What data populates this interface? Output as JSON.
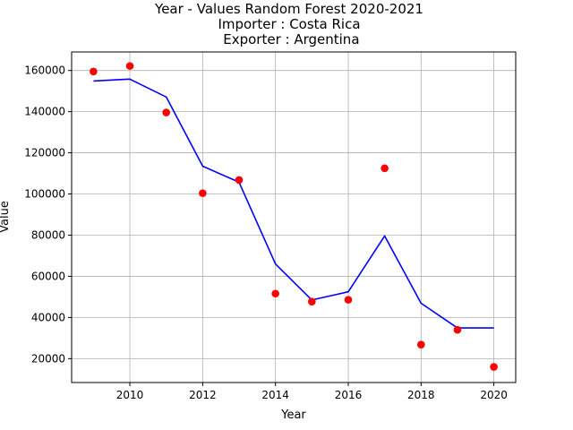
{
  "chart_data": {
    "type": "line",
    "title_lines": [
      "Year - Values Random Forest 2020-2021",
      "Importer : Costa Rica",
      " Exporter : Argentina"
    ],
    "xlabel": "Year",
    "ylabel": "Value",
    "xlim": [
      2008.4,
      2020.6
    ],
    "ylim": [
      8400,
      169000
    ],
    "x_ticks": [
      2010,
      2012,
      2014,
      2016,
      2018,
      2020
    ],
    "x_tick_labels": [
      "2010",
      "2012",
      "2014",
      "2016",
      "2018",
      "2020"
    ],
    "y_ticks": [
      20000,
      40000,
      60000,
      80000,
      100000,
      120000,
      140000,
      160000
    ],
    "y_tick_labels": [
      "20000",
      "40000",
      "60000",
      "80000",
      "100000",
      "120000",
      "140000",
      "160000"
    ],
    "grid": true,
    "series": [
      {
        "kind": "line",
        "color": "#0000ff",
        "x": [
          2009,
          2010,
          2011,
          2012,
          2013,
          2014,
          2015,
          2016,
          2017,
          2018,
          2019,
          2020
        ],
        "y": [
          154900,
          155800,
          147100,
          113500,
          105700,
          66000,
          48500,
          52500,
          79600,
          46900,
          34900,
          34900
        ]
      },
      {
        "kind": "scatter",
        "color": "#ff0000",
        "x": [
          2009,
          2010,
          2011,
          2012,
          2013,
          2014,
          2015,
          2016,
          2017,
          2018,
          2019,
          2020
        ],
        "y": [
          159500,
          162200,
          139600,
          100400,
          106800,
          51600,
          47700,
          48600,
          112500,
          26800,
          34000,
          16000
        ]
      }
    ]
  }
}
